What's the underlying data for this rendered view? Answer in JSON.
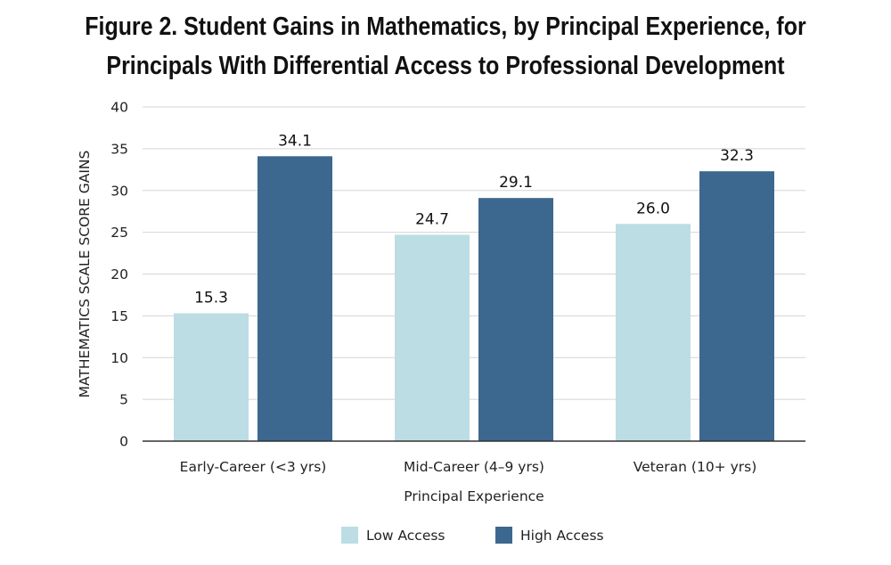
{
  "chart_data": {
    "type": "bar",
    "title_lines": [
      "Figure 2. Student Gains in Mathematics, by Principal Experience, for",
      "Principals With Differential Access to Professional Development"
    ],
    "xlabel": "Principal Experience",
    "ylabel": "MATHEMATICS SCALE SCORE GAINS",
    "categories": [
      "Early-Career (<3 yrs)",
      "Mid-Career (4–9 yrs)",
      "Veteran (10+ yrs)"
    ],
    "series": [
      {
        "name": "Low Access",
        "color": "#bcdde4",
        "values": [
          15.3,
          24.7,
          26.0
        ],
        "labels": [
          "15.3",
          "24.7",
          "26.0"
        ]
      },
      {
        "name": "High Access",
        "color": "#3c6890",
        "values": [
          34.1,
          29.1,
          32.3
        ],
        "labels": [
          "34.1",
          "29.1",
          "32.3"
        ]
      }
    ],
    "ylim": [
      0,
      40
    ],
    "yticks": [
      0,
      5,
      10,
      15,
      20,
      25,
      30,
      35,
      40
    ],
    "grid": true,
    "legend": "bottom"
  }
}
